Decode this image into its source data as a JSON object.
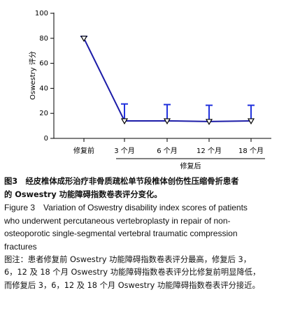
{
  "chart_data": {
    "type": "line",
    "y_label": "Oswestry 评分",
    "categories": [
      "修复前",
      "3 个月",
      "6 个月",
      "12 个月",
      "18 个月"
    ],
    "x_group_label": "修复后",
    "values": [
      80,
      14,
      14,
      13.5,
      14
    ],
    "errors": [
      1.5,
      13.5,
      13,
      13,
      12.5
    ],
    "color": "#1c1ca8",
    "error_color": "#2233dd",
    "ylim": [
      0,
      100
    ],
    "yticks": [
      0,
      20,
      40,
      60,
      80,
      100
    ]
  },
  "caption": {
    "cn_title": [
      "图3　经皮椎体成形治疗非骨质疏松单节段椎体创伤性压缩骨折患者",
      "的 Oswestry 功能障碍指数卷表评分变化。"
    ],
    "en_title": [
      "Figure 3　Variation of Oswestry disability index scores of patients",
      "who underwent percutaneous vertebroplasty in repair of non-",
      "osteoporotic single-segmental vertebral traumatic compression",
      "fractures"
    ],
    "note": [
      "图注：患者修复前 Oswestry 功能障碍指数卷表评分最高，修复后 3，",
      "6，12 及 18 个月 Oswestry 功能障碍指数卷表评分比修复前明显降低，",
      "而修复后 3，6，12 及 18 个月 Oswestry 功能障碍指数卷表评分接近。"
    ]
  }
}
